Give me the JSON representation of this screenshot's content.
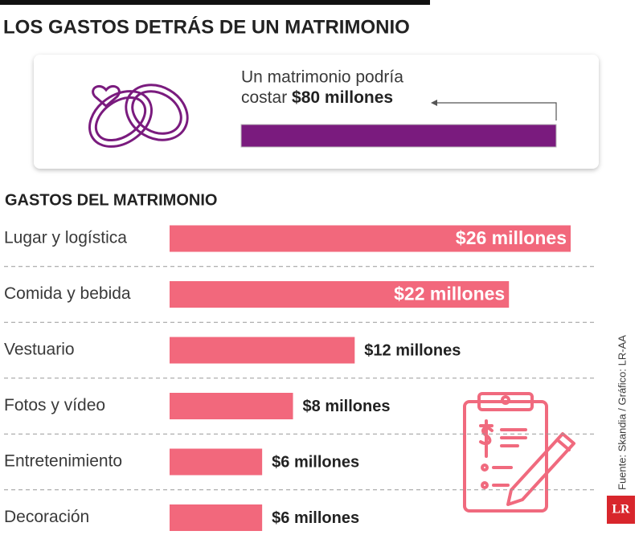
{
  "chart_data": {
    "type": "bar",
    "title": "LOS GASTOS DETRÁS DE UN MATRIMONIO",
    "callout": {
      "line1": "Un matrimonio podría",
      "prefix": "costar",
      "total": 80,
      "total_label": "$80 millones",
      "color": "#7a1b7e"
    },
    "subtitle": "GASTOS DEL MATRIMONIO",
    "categories": [
      "Lugar y logística",
      "Comida y bebida",
      "Vestuario",
      "Fotos y vídeo",
      "Entretenimiento",
      "Decoración"
    ],
    "values": [
      26,
      22,
      12,
      8,
      6,
      6
    ],
    "value_labels": [
      "$26 millones",
      "$22 millones",
      "$12 millones",
      "$8 millones",
      "$6 millones",
      "$6 millones"
    ],
    "color": "#f2687c",
    "source": "Fuente: Skandia / Gráfico: LR-AA",
    "logo": "LR"
  }
}
